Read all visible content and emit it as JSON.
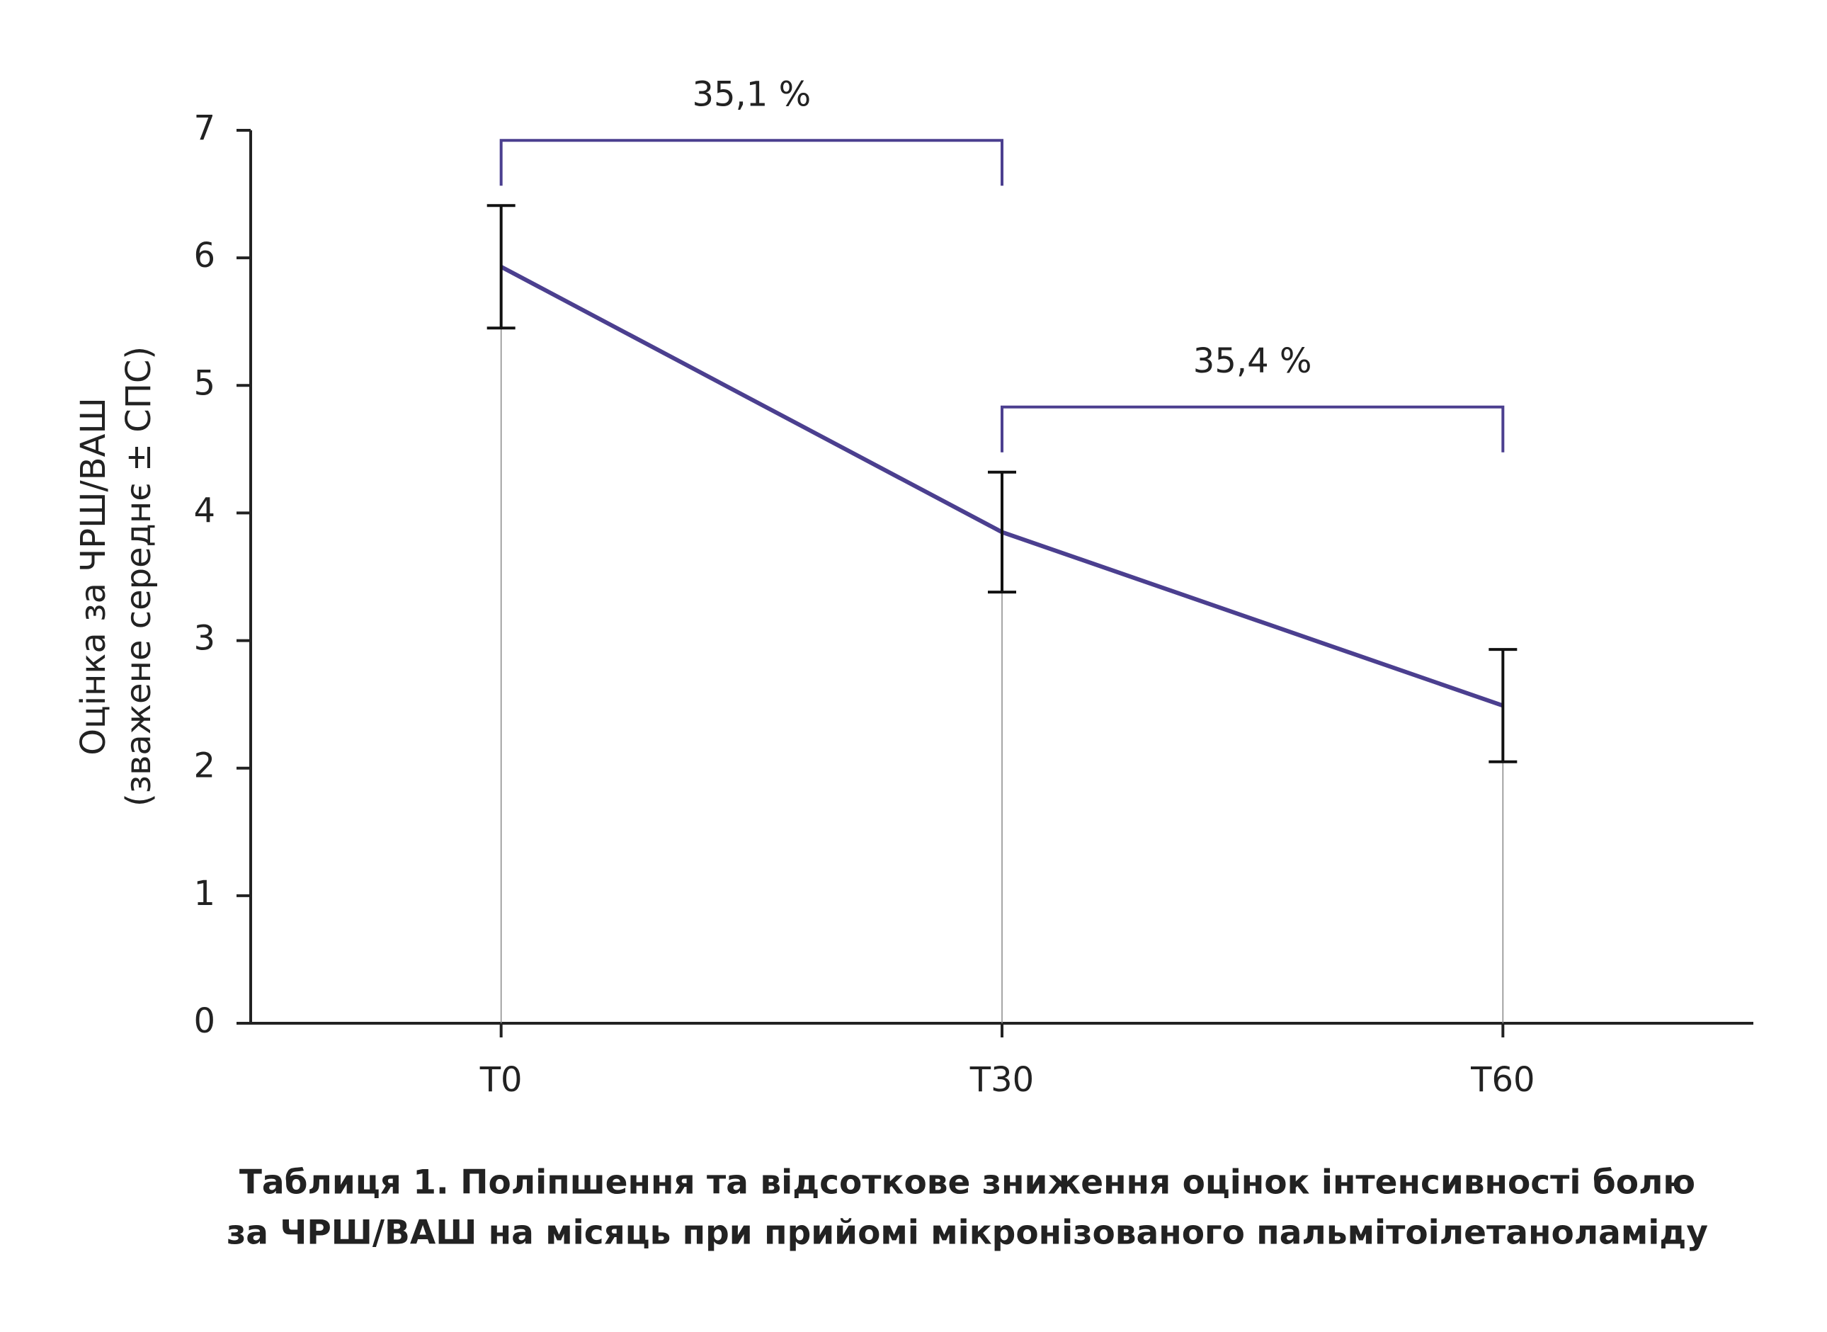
{
  "chart_data": {
    "type": "line",
    "ylabel": [
      "Оцінка за ЧРШ/ВАШ",
      "(зважене середнє ± СПС)"
    ],
    "caption": [
      "Таблиця 1. Поліпшення та відсоткове зниження оцінок інтенсивності болю",
      "за ЧРШ/ВАШ на місяць при прийомі мікронізованого пальмітоілетаноламіду"
    ],
    "categories": [
      "T0",
      "T30",
      "T60"
    ],
    "series": [
      {
        "color": "#4b3f8f",
        "values": [
          5.93,
          3.85,
          2.49
        ],
        "errors": [
          0.48,
          0.47,
          0.44
        ]
      }
    ],
    "annotations": [
      "35,1 %",
      "35,4 %"
    ],
    "ylim": [
      0,
      7
    ],
    "yticks": [
      0,
      1,
      2,
      3,
      4,
      5,
      6,
      7
    ]
  }
}
